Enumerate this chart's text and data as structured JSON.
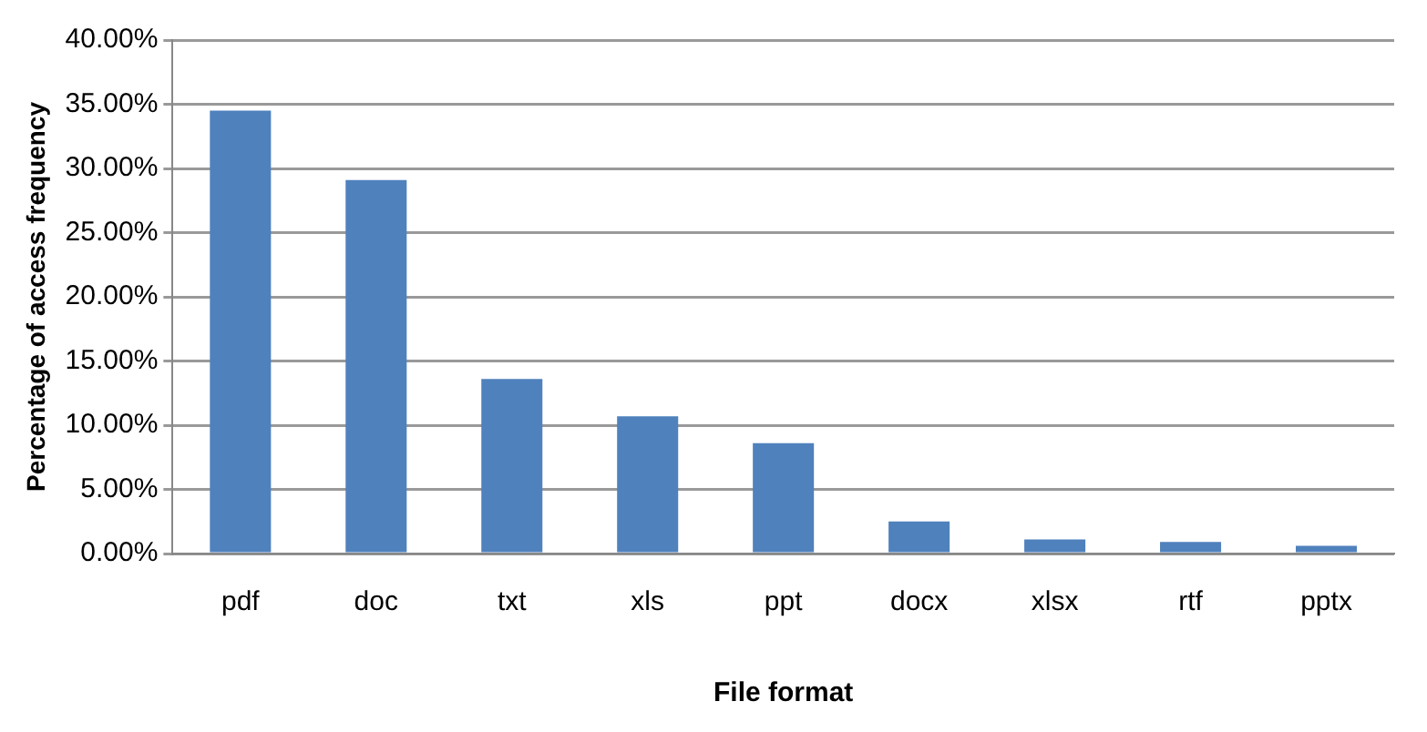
{
  "chart_data": {
    "type": "bar",
    "xlabel": "File format",
    "ylabel": "Percentage of access frequency",
    "categories": [
      "pdf",
      "doc",
      "txt",
      "xls",
      "ppt",
      "docx",
      "xlsx",
      "rtf",
      "pptx"
    ],
    "values": [
      34.5,
      29.1,
      13.6,
      10.7,
      8.6,
      2.5,
      1.1,
      0.9,
      0.6
    ],
    "color": "#4f81bd",
    "ylim": [
      0,
      40
    ],
    "yticks": [
      {
        "value": 0,
        "label": "0.00%"
      },
      {
        "value": 5,
        "label": "5.00%"
      },
      {
        "value": 10,
        "label": "10.00%"
      },
      {
        "value": 15,
        "label": "15.00%"
      },
      {
        "value": 20,
        "label": "20.00%"
      },
      {
        "value": 25,
        "label": "25.00%"
      },
      {
        "value": 30,
        "label": "30.00%"
      },
      {
        "value": 35,
        "label": "35.00%"
      },
      {
        "value": 40,
        "label": "40.00%"
      }
    ],
    "grid": "y",
    "legend": false
  }
}
